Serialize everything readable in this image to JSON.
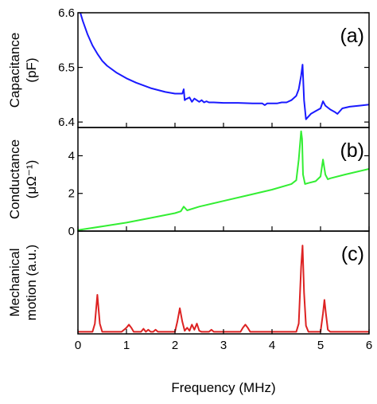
{
  "chart_data": [
    {
      "type": "line",
      "panel_label": "(a)",
      "ylabel": "Capacitance",
      "ylabel_unit": "(pF)",
      "color": "#1a1aff",
      "xlim": [
        0,
        6
      ],
      "ylim": [
        6.39,
        6.6
      ],
      "yticks": [
        6.4,
        6.5,
        6.6
      ],
      "ytick_labels": [
        "6.4",
        "6.5",
        "6.6"
      ],
      "series": [
        {
          "x": [
            0.05,
            0.1,
            0.2,
            0.3,
            0.4,
            0.5,
            0.6,
            0.8,
            1.0,
            1.2,
            1.5,
            1.8,
            2.0,
            2.15,
            2.18,
            2.2,
            2.23,
            2.3,
            2.35,
            2.4,
            2.5,
            2.55,
            2.6,
            2.65,
            2.7,
            2.8,
            3.0,
            3.3,
            3.6,
            3.8,
            3.85,
            3.9,
            4.1,
            4.2,
            4.3,
            4.4,
            4.5,
            4.55,
            4.6,
            4.63,
            4.66,
            4.7,
            4.8,
            4.9,
            5.0,
            5.05,
            5.1,
            5.2,
            5.3,
            5.35,
            5.45,
            5.6,
            5.8,
            6.0
          ],
          "y": [
            6.6,
            6.585,
            6.56,
            6.54,
            6.525,
            6.512,
            6.503,
            6.49,
            6.48,
            6.472,
            6.462,
            6.455,
            6.452,
            6.452,
            6.46,
            6.44,
            6.442,
            6.445,
            6.437,
            6.443,
            6.437,
            6.44,
            6.436,
            6.438,
            6.436,
            6.436,
            6.435,
            6.435,
            6.434,
            6.434,
            6.431,
            6.434,
            6.434,
            6.436,
            6.436,
            6.44,
            6.448,
            6.46,
            6.485,
            6.505,
            6.44,
            6.405,
            6.415,
            6.42,
            6.425,
            6.438,
            6.43,
            6.423,
            6.418,
            6.415,
            6.425,
            6.428,
            6.43,
            6.432
          ]
        }
      ]
    },
    {
      "type": "line",
      "panel_label": "(b)",
      "ylabel": "Conductance",
      "ylabel_unit": "(μΩ⁻¹)",
      "color": "#33ee33",
      "xlim": [
        0,
        6
      ],
      "ylim": [
        0,
        5.5
      ],
      "yticks": [
        0,
        2,
        4
      ],
      "ytick_labels": [
        "0",
        "2",
        "4"
      ],
      "series": [
        {
          "x": [
            0,
            0.5,
            1.0,
            1.5,
            2.0,
            2.12,
            2.18,
            2.25,
            2.5,
            3.0,
            3.5,
            4.0,
            4.4,
            4.5,
            4.55,
            4.6,
            4.62,
            4.64,
            4.68,
            4.75,
            4.9,
            5.0,
            5.05,
            5.1,
            5.15,
            5.2,
            5.5,
            6.0
          ],
          "y": [
            0.05,
            0.25,
            0.45,
            0.7,
            0.95,
            1.05,
            1.3,
            1.1,
            1.3,
            1.6,
            1.9,
            2.2,
            2.5,
            2.7,
            3.8,
            5.3,
            4.9,
            3.0,
            2.5,
            2.55,
            2.65,
            2.9,
            3.8,
            3.0,
            2.75,
            2.8,
            3.0,
            3.3
          ]
        }
      ]
    },
    {
      "type": "line",
      "panel_label": "(c)",
      "ylabel": "Mechanical",
      "ylabel_unit": "motion (a.u.)",
      "color": "#dd2222",
      "xlabel": "Frequency (MHz)",
      "xlim": [
        0,
        6
      ],
      "ylim": [
        0,
        1.0
      ],
      "xticks": [
        0,
        1,
        2,
        3,
        4,
        5,
        6
      ],
      "xtick_labels": [
        "0",
        "1",
        "2",
        "3",
        "4",
        "5",
        "6"
      ],
      "series": [
        {
          "x": [
            0,
            0.3,
            0.35,
            0.4,
            0.45,
            0.5,
            0.9,
            1.0,
            1.05,
            1.1,
            1.15,
            1.3,
            1.35,
            1.4,
            1.45,
            1.5,
            1.55,
            1.6,
            1.65,
            1.7,
            2.0,
            2.05,
            2.1,
            2.15,
            2.2,
            2.25,
            2.3,
            2.35,
            2.4,
            2.45,
            2.5,
            2.55,
            2.7,
            2.75,
            2.8,
            3.35,
            3.4,
            3.45,
            3.5,
            3.55,
            4.5,
            4.55,
            4.6,
            4.63,
            4.66,
            4.7,
            4.75,
            5.0,
            5.05,
            5.08,
            5.11,
            5.15,
            5.2,
            6.0
          ],
          "y": [
            0.02,
            0.02,
            0.1,
            0.38,
            0.1,
            0.02,
            0.02,
            0.06,
            0.09,
            0.06,
            0.02,
            0.02,
            0.05,
            0.02,
            0.04,
            0.02,
            0.02,
            0.04,
            0.02,
            0.02,
            0.02,
            0.12,
            0.25,
            0.12,
            0.03,
            0.06,
            0.03,
            0.09,
            0.04,
            0.1,
            0.03,
            0.02,
            0.02,
            0.04,
            0.02,
            0.02,
            0.06,
            0.09,
            0.06,
            0.02,
            0.02,
            0.1,
            0.65,
            0.86,
            0.4,
            0.08,
            0.02,
            0.02,
            0.2,
            0.33,
            0.2,
            0.04,
            0.02,
            0.02
          ]
        }
      ]
    }
  ]
}
